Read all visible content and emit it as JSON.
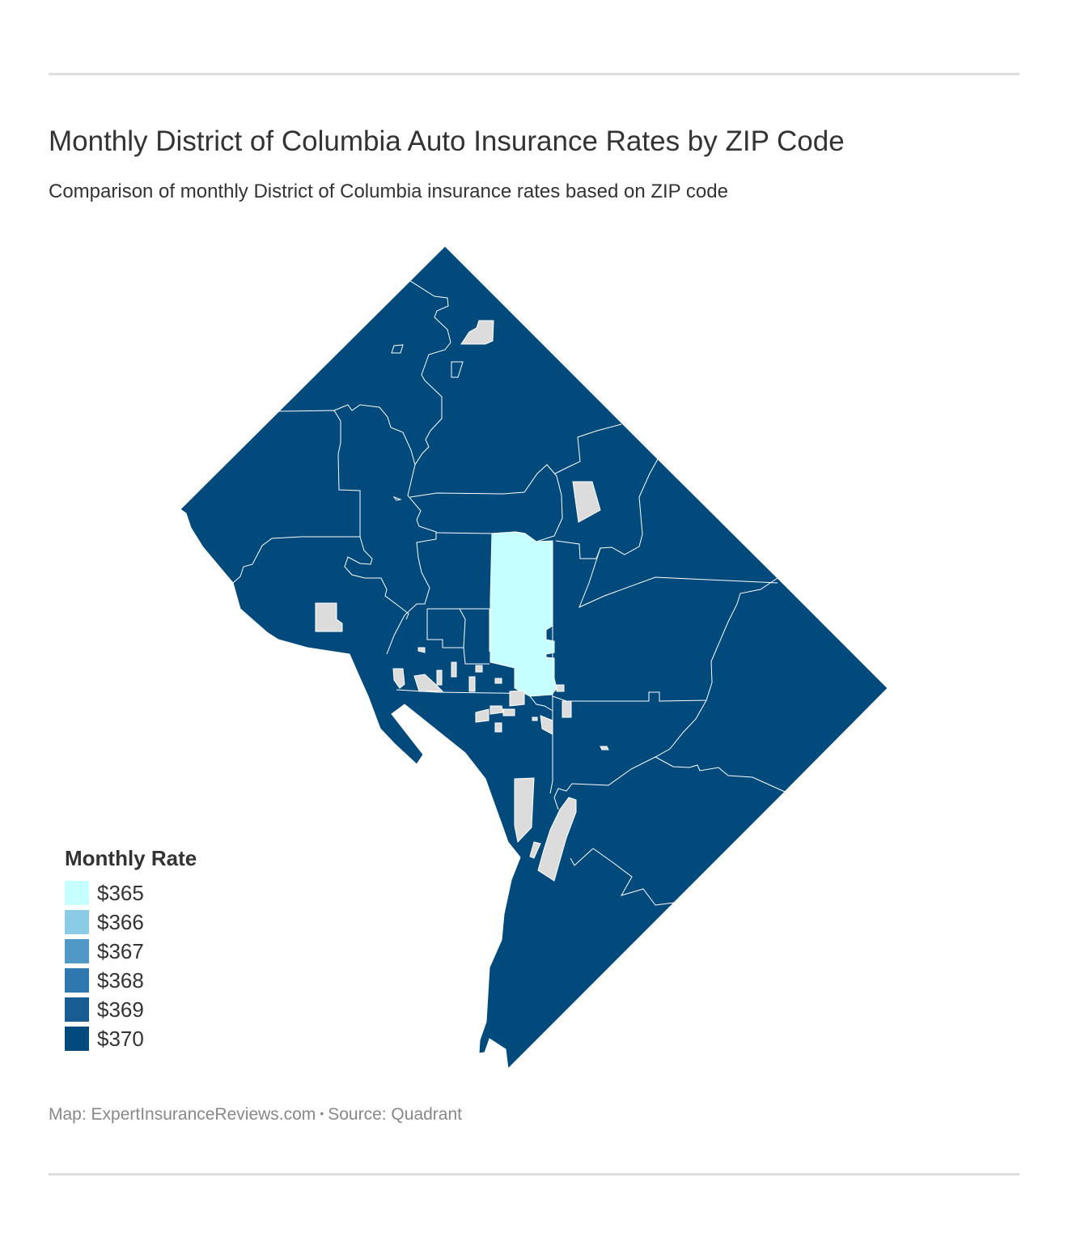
{
  "title": "Monthly District of Columbia Auto Insurance Rates by ZIP Code",
  "subtitle": "Comparison of monthly District of Columbia insurance rates based on ZIP code",
  "legend": {
    "title": "Monthly Rate",
    "items": [
      {
        "label": "$365",
        "color": "#c5ffff"
      },
      {
        "label": "$366",
        "color": "#8ccbe5"
      },
      {
        "label": "$367",
        "color": "#5099c6"
      },
      {
        "label": "$368",
        "color": "#2e78af"
      },
      {
        "label": "$369",
        "color": "#175d93"
      },
      {
        "label": "$370",
        "color": "#024a7c"
      }
    ]
  },
  "map": {
    "region": "District of Columbia",
    "colors": {
      "rate_365": "#c5ffff",
      "rate_370": "#024a7c",
      "no_data": "#dcdcdc",
      "boundary": "#ffffff",
      "water": "#ffffff"
    }
  },
  "credit": {
    "map": "Map: ExpertInsuranceReviews.com",
    "separator": "•",
    "source": "Source: Quadrant"
  }
}
